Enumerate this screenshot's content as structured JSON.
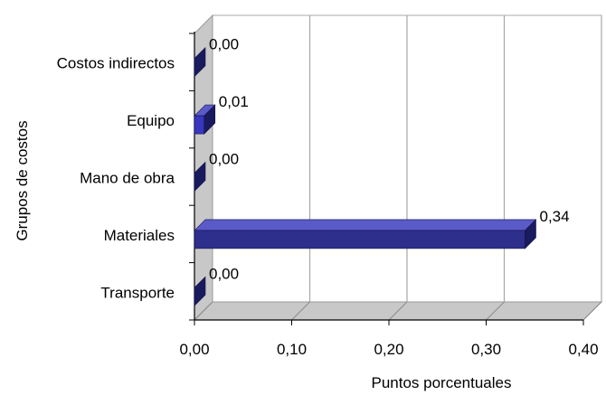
{
  "chart_data": {
    "type": "bar",
    "orientation": "horizontal",
    "style": "3d",
    "categories": [
      "Costos indirectos",
      "Equipo",
      "Mano de obra",
      "Materiales",
      "Transporte"
    ],
    "values": [
      0.0,
      0.01,
      0.0,
      0.34,
      0.0
    ],
    "data_labels": [
      "0,00",
      "0,01",
      "0,00",
      "0,34",
      "0,00"
    ],
    "xticks": [
      "0,00",
      "0,10",
      "0,20",
      "0,30",
      "0,40"
    ],
    "xlim": [
      0,
      0.4
    ],
    "xlabel": "Puntos porcentuales",
    "ylabel": "Grupos de costos",
    "grid": true,
    "legend": "none",
    "colors": {
      "bar_front": "#2E2E8C",
      "bar_top": "#5A5AC8",
      "bar_side": "#1A1A5E",
      "highlight_bar_front": "#3737C0",
      "grid": "#A8A8A8",
      "wall": "#C8C8C8"
    }
  }
}
